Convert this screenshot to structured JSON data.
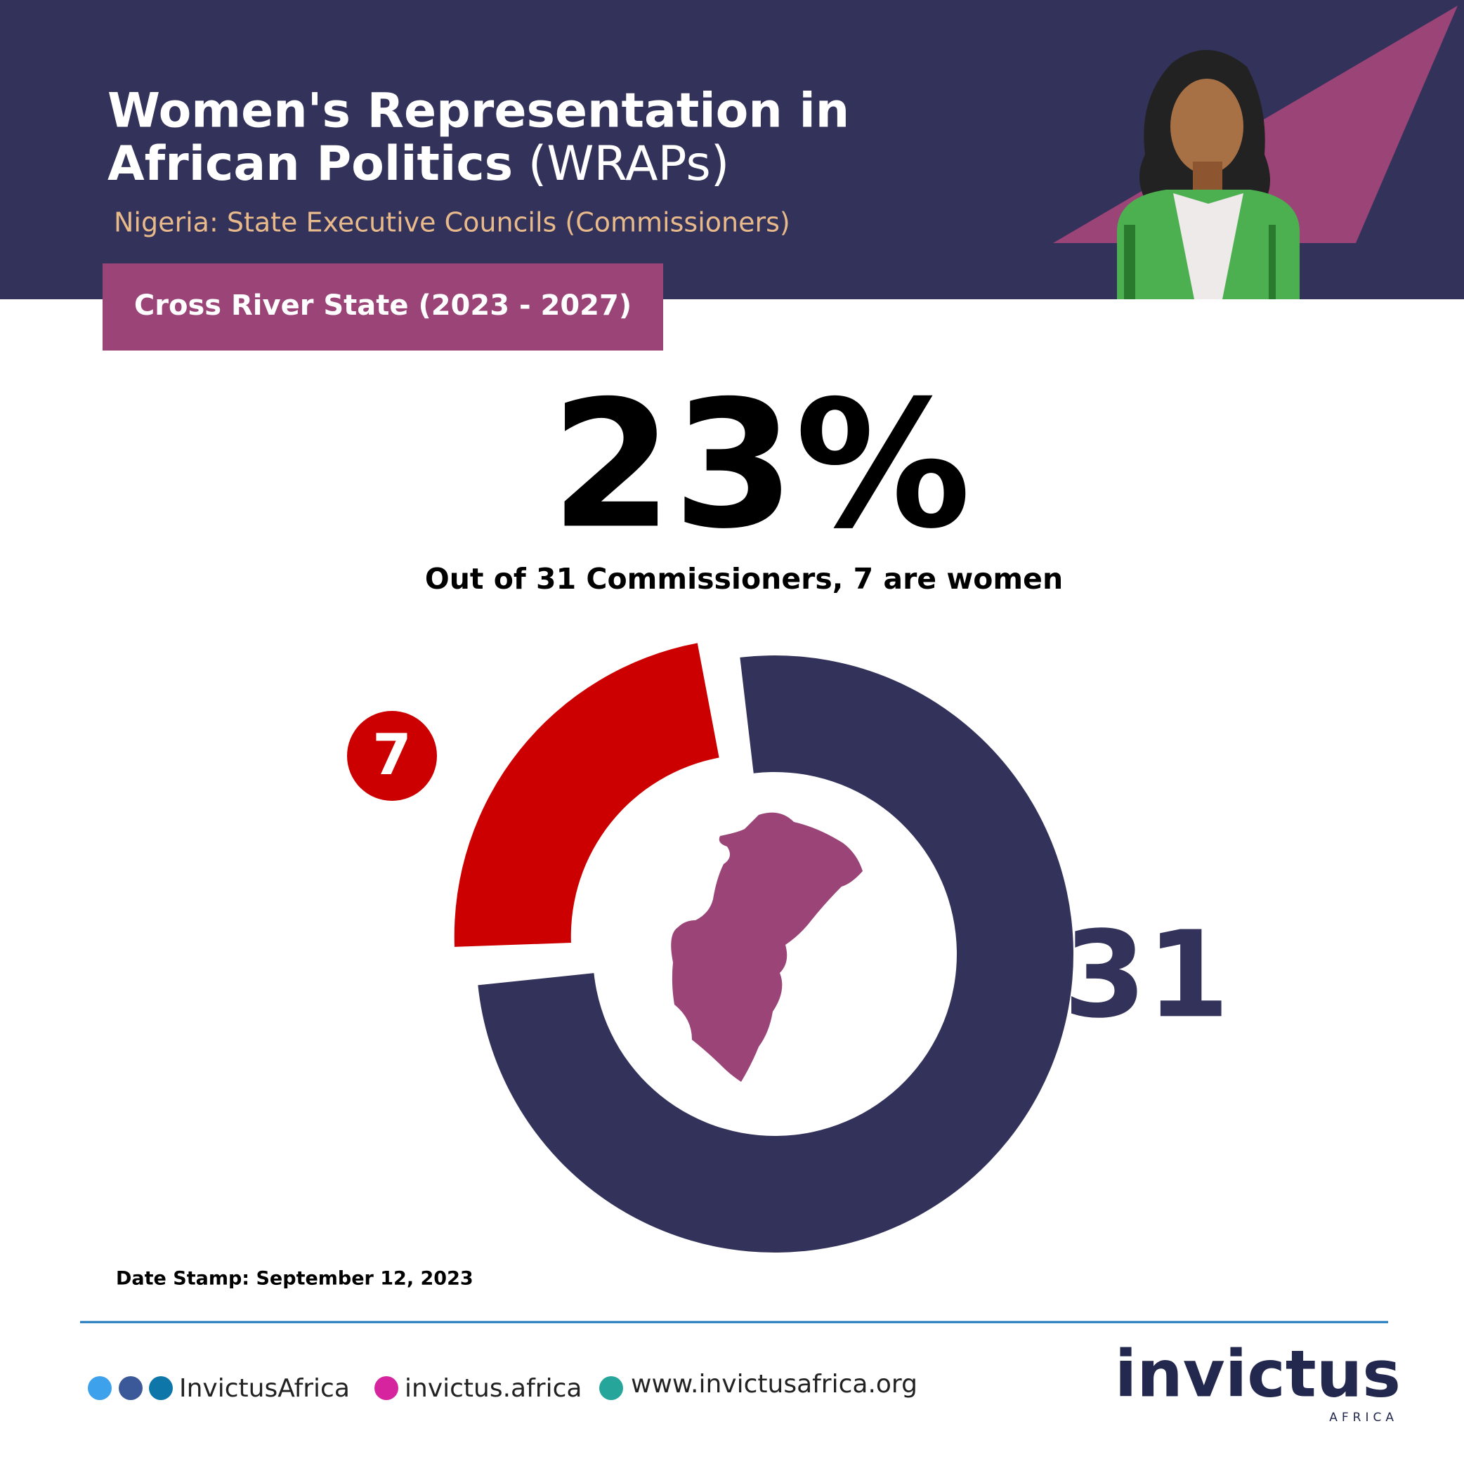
{
  "header": {
    "title_line1": "Women's Representation in",
    "title_line2_bold": "African Politics",
    "title_line2_regular": "(WRAPs)",
    "subtitle": "Nigeria: State Executive Councils (Commissioners)",
    "badge": "Cross River State (2023 - 2027)"
  },
  "chart_data": {
    "type": "donut",
    "headline": {
      "value": 23,
      "label": "23%"
    },
    "caption": "Out of 31 Commissioners, 7 are women",
    "part": 7,
    "total": 31,
    "part_color": "#cc0000",
    "rest_color": "#33325a"
  },
  "date_stamp": "Date Stamp: September 12, 2023",
  "footer": {
    "social": "InvictusAfrica",
    "instagram": "invictus.africa",
    "website": "www.invictusafrica.org",
    "logo": "invictus",
    "logo_sub": "AFRICA"
  }
}
